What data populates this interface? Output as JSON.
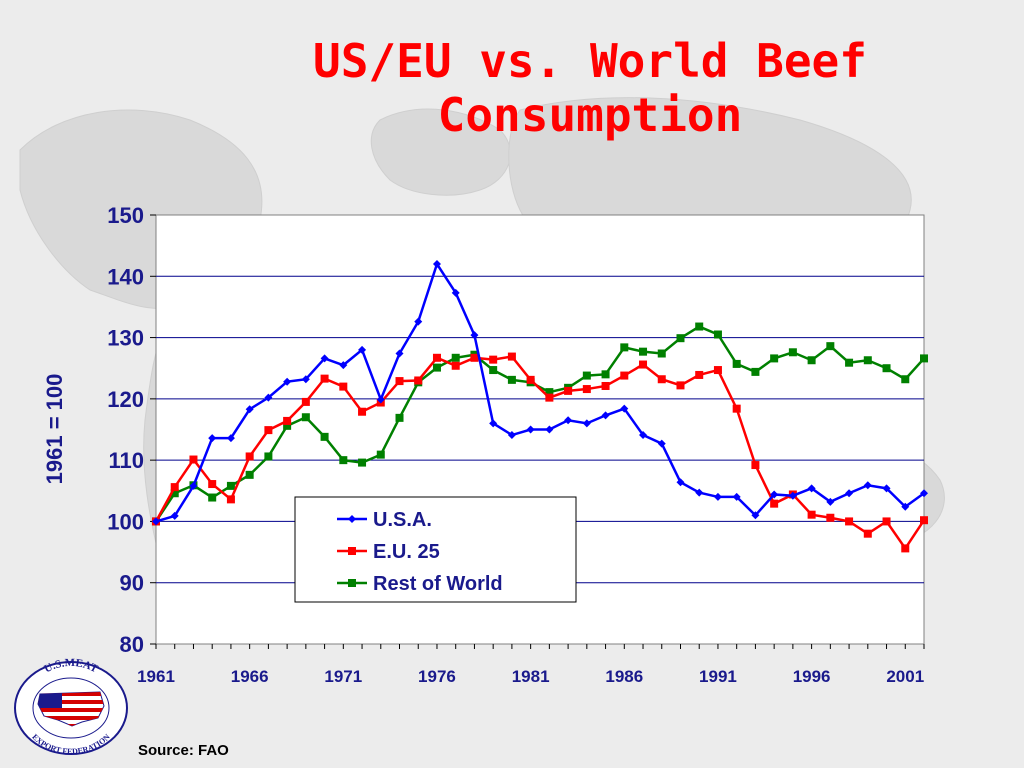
{
  "slide": {
    "title_line1": "US/EU vs. World Beef",
    "title_line2": "Consumption",
    "source": "Source: FAO",
    "colors": {
      "title": "#ff0000",
      "axis_text": "#1a1a8c",
      "plot_bg": "#ffffff"
    }
  },
  "logo": {
    "top_text": "U.S.MEAT",
    "bottom_text": "EXPORT FEDERATION",
    "icon": "us-flag-map-seal"
  },
  "chart_data": {
    "type": "line",
    "title": "",
    "xlabel": "",
    "ylabel": "1961 = 100",
    "ylim": [
      80,
      150
    ],
    "yticks": [
      80,
      90,
      100,
      110,
      120,
      130,
      140,
      150
    ],
    "xlim": [
      1961,
      2002
    ],
    "xtick_labels": [
      "1961",
      "1966",
      "1971",
      "1976",
      "1981",
      "1986",
      "1991",
      "1996",
      "2001"
    ],
    "grid": "horizontal",
    "legend_position": "bottom-center",
    "x": [
      1961,
      1962,
      1963,
      1964,
      1965,
      1966,
      1967,
      1968,
      1969,
      1970,
      1971,
      1972,
      1973,
      1974,
      1975,
      1976,
      1977,
      1978,
      1979,
      1980,
      1981,
      1982,
      1983,
      1984,
      1985,
      1986,
      1987,
      1988,
      1989,
      1990,
      1991,
      1992,
      1993,
      1994,
      1995,
      1996,
      1997,
      1998,
      1999,
      2000,
      2001,
      2002
    ],
    "series": [
      {
        "name": "U.S.A.",
        "color": "#0000ff",
        "marker": "diamond",
        "values": [
          100.0,
          100.9,
          105.8,
          113.6,
          113.6,
          118.3,
          120.2,
          122.8,
          123.2,
          126.6,
          125.5,
          128.0,
          119.9,
          127.4,
          132.6,
          142.0,
          137.3,
          130.4,
          116.0,
          114.1,
          115.0,
          115.0,
          116.5,
          116.0,
          117.3,
          118.4,
          114.1,
          112.7,
          106.4,
          104.7,
          104.0,
          104.0,
          101.0,
          104.4,
          104.2,
          105.4,
          103.2,
          104.6,
          105.9,
          105.4,
          102.4,
          104.6
        ]
      },
      {
        "name": "E.U. 25",
        "color": "#ff0000",
        "marker": "square",
        "values": [
          100.0,
          105.6,
          110.1,
          106.1,
          103.6,
          110.6,
          114.9,
          116.4,
          119.5,
          123.3,
          122.0,
          117.9,
          119.4,
          122.9,
          123.0,
          126.7,
          125.4,
          126.7,
          126.4,
          126.9,
          123.1,
          120.2,
          121.3,
          121.6,
          122.1,
          123.8,
          125.6,
          123.2,
          122.2,
          123.9,
          124.7,
          118.4,
          109.2,
          102.9,
          104.4,
          101.1,
          100.6,
          100.0,
          98.0,
          100.0,
          95.6,
          100.2
        ]
      },
      {
        "name": "Rest of World",
        "color": "#008000",
        "marker": "square",
        "values": [
          100.0,
          104.6,
          105.9,
          103.9,
          105.8,
          107.6,
          110.6,
          115.6,
          117.0,
          113.8,
          110.0,
          109.6,
          110.9,
          116.9,
          122.7,
          125.1,
          126.7,
          127.2,
          124.7,
          123.1,
          122.7,
          121.1,
          121.8,
          123.8,
          124.0,
          128.4,
          127.7,
          127.4,
          129.9,
          131.8,
          130.5,
          125.7,
          124.4,
          126.6,
          127.6,
          126.3,
          128.6,
          125.9,
          126.3,
          125.0,
          123.2,
          126.6
        ]
      }
    ]
  }
}
